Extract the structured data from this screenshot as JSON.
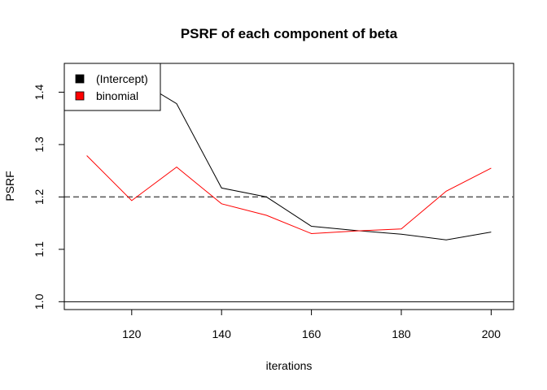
{
  "chart_data": {
    "type": "line",
    "title": "PSRF of each component of beta",
    "xlabel": "iterations",
    "ylabel": "PSRF",
    "xlim": [
      105,
      205
    ],
    "ylim": [
      0.985,
      1.455
    ],
    "x_ticks": [
      120,
      140,
      160,
      180,
      200
    ],
    "x_tick_labels": [
      "120",
      "140",
      "160",
      "180",
      "200"
    ],
    "y_ticks": [
      1.0,
      1.1,
      1.2,
      1.3,
      1.4
    ],
    "y_tick_labels": [
      "1.0",
      "1.1",
      "1.2",
      "1.3",
      "1.4"
    ],
    "x": [
      110,
      120,
      130,
      140,
      150,
      160,
      170,
      180,
      190,
      200
    ],
    "series": [
      {
        "name": "(Intercept)",
        "color": "#000000",
        "values": [
          1.445,
          1.43,
          1.378,
          1.217,
          1.2,
          1.144,
          1.136,
          1.129,
          1.118,
          1.133
        ]
      },
      {
        "name": "binomial",
        "color": "#ff0000",
        "values": [
          1.279,
          1.193,
          1.257,
          1.187,
          1.165,
          1.13,
          1.135,
          1.139,
          1.211,
          1.255
        ]
      }
    ],
    "reference_lines": [
      {
        "y": 1.2,
        "style": "dashed",
        "color": "#555555"
      },
      {
        "y": 1.0,
        "style": "solid",
        "color": "#000000"
      }
    ],
    "legend": {
      "position": "top-left",
      "entries": [
        {
          "label": "(Intercept)",
          "color": "#000000"
        },
        {
          "label": "binomial",
          "color": "#ff0000"
        }
      ]
    },
    "grid": false
  }
}
